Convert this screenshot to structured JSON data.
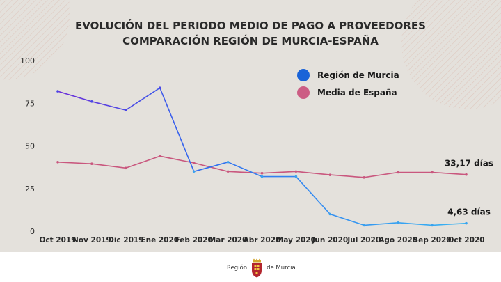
{
  "chart_data": {
    "type": "line",
    "title": [
      "EVOLUCIÓN DEL PERIODO MEDIO DE PAGO A PROVEEDORES",
      "COMPARACIÓN REGIÓN DE MURCIA-ESPAÑA"
    ],
    "categories": [
      "Oct 2019",
      "Nov 2019",
      "Dic 2019",
      "Ene 2020",
      "Feb 2020",
      "Mar 2020",
      "Abr 2020",
      "May 2020",
      "Jun 2020",
      "Jul 2020",
      "Ago 2020",
      "Sep 2020",
      "Oct 2020"
    ],
    "ylim": [
      0,
      100
    ],
    "yticks": [
      0,
      25,
      50,
      75,
      100
    ],
    "grid": false,
    "legend_position": "top-right",
    "series": [
      {
        "name": "Región de Murcia",
        "color_start": "#6b2bd9",
        "color_end": "#39b4f2",
        "legend_color": "#1a63d8",
        "values": [
          82,
          76,
          71,
          84,
          35,
          40.5,
          32,
          32,
          10,
          3.5,
          5,
          3.5,
          4.63
        ]
      },
      {
        "name": "Media de España",
        "color": "#c9577e",
        "legend_color": "#cc5d84",
        "values": [
          40.5,
          39.5,
          37,
          44,
          40,
          35,
          34,
          35,
          33,
          31.5,
          34.5,
          34.5,
          33.17
        ]
      }
    ],
    "annotations": [
      {
        "series": 1,
        "index": 12,
        "text": "33,17 días"
      },
      {
        "series": 0,
        "index": 12,
        "text": "4,63 días"
      }
    ]
  },
  "footer": {
    "left_text": "Región",
    "right_text": "de Murcia",
    "crest": "murcia-crest-icon"
  }
}
